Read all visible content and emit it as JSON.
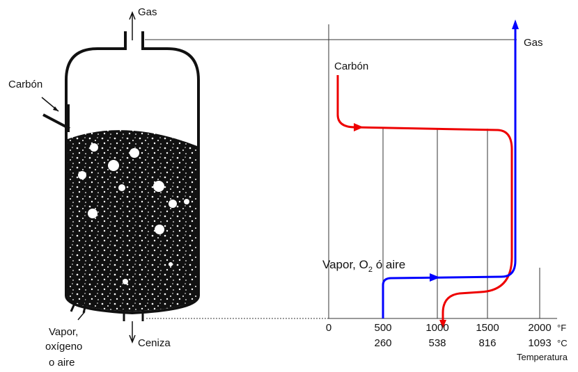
{
  "reactor": {
    "gas": "Gas",
    "coal": "Carbón",
    "inlet": [
      "Vapor,",
      "oxígeno",
      "o aire"
    ],
    "ash": "Ceniza"
  },
  "profile": {
    "coal": "Carbón",
    "gas": "Gas",
    "steam": [
      "Vapor, O",
      "2",
      " ó aire"
    ],
    "fahrenheit_ticks": [
      "0",
      "500",
      "1000",
      "1500",
      "2000"
    ],
    "fahrenheit_unit": "°F",
    "celsius_ticks": [
      "260",
      "538",
      "816",
      "1093"
    ],
    "celsius_unit": "°C",
    "axis_label": "Temperatura"
  }
}
